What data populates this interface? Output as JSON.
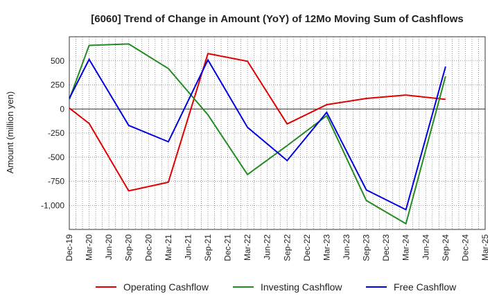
{
  "chart_data": {
    "type": "line",
    "title": "[6060]  Trend of Change in Amount (YoY) of 12Mo Moving Sum of Cashflows",
    "xlabel": "",
    "ylabel": "Amount (million yen)",
    "ylim": [
      -1250,
      750
    ],
    "yticks": [
      500,
      250,
      0,
      -250,
      -500,
      -750,
      -1000
    ],
    "ytick_labels": [
      "500",
      "250",
      "0",
      "-250",
      "-500",
      "-750",
      "-1,000"
    ],
    "categories": [
      "Dec-19",
      "Mar-20",
      "Jun-20",
      "Sep-20",
      "Dec-20",
      "Mar-21",
      "Jun-21",
      "Sep-21",
      "Dec-21",
      "Mar-22",
      "Jun-22",
      "Sep-22",
      "Dec-22",
      "Mar-23",
      "Jun-23",
      "Sep-23",
      "Dec-23",
      "Mar-24",
      "Jun-24",
      "Sep-24",
      "Dec-24",
      "Mar-25"
    ],
    "grid": true,
    "legend_position": "bottom",
    "series": [
      {
        "name": "Operating Cashflow",
        "color": "#e00000",
        "values": [
          10,
          -150,
          null,
          -850,
          null,
          -760,
          null,
          575,
          null,
          495,
          null,
          -155,
          null,
          45,
          null,
          110,
          null,
          145,
          null,
          100,
          null,
          null
        ]
      },
      {
        "name": "Investing Cashflow",
        "color": "#228b22",
        "values": [
          100,
          660,
          null,
          675,
          null,
          420,
          null,
          -60,
          null,
          -680,
          null,
          -380,
          null,
          -70,
          null,
          -950,
          null,
          -1190,
          null,
          340,
          null,
          null
        ]
      },
      {
        "name": "Free Cashflow",
        "color": "#0000e0",
        "values": [
          110,
          515,
          null,
          -170,
          null,
          -340,
          null,
          510,
          null,
          -190,
          null,
          -535,
          null,
          -35,
          null,
          -840,
          null,
          -1045,
          null,
          440,
          null,
          null
        ]
      }
    ]
  }
}
